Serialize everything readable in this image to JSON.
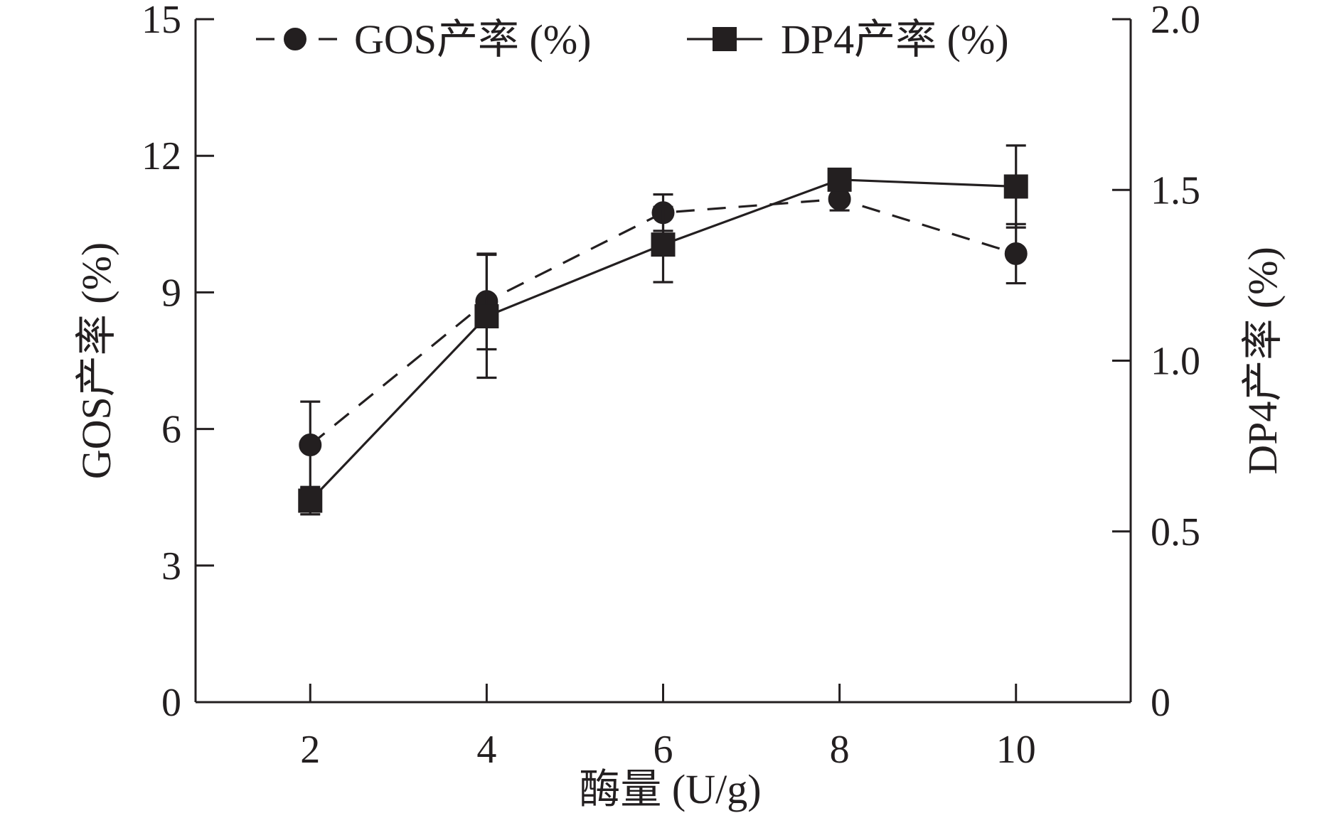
{
  "chart_data": {
    "type": "line",
    "x": [
      2,
      4,
      6,
      8,
      10
    ],
    "xlabel": "酶量 (U/g)",
    "xlim": [
      0.7,
      11.3
    ],
    "xticks": [
      2,
      4,
      6,
      8,
      10
    ],
    "ylabel": "GOS产率 (%)",
    "ylim": [
      0,
      15
    ],
    "yticks": [
      0,
      3,
      6,
      9,
      12,
      15
    ],
    "y2label": "DP4产率 (%)",
    "y2lim": [
      0,
      2.0
    ],
    "y2ticks": [
      "0",
      "0.5",
      "1.0",
      "1.5",
      "2.0"
    ],
    "grid": false,
    "legend_position": "top",
    "series": [
      {
        "name": "GOS产率 (%)",
        "axis": "left",
        "marker": "circle",
        "line_style": "dashed",
        "color": "#231f20",
        "values": [
          5.65,
          8.8,
          10.75,
          11.05,
          9.85
        ],
        "errors": [
          0.95,
          1.05,
          0.4,
          0.25,
          0.65
        ]
      },
      {
        "name": "DP4产率 (%)",
        "axis": "right",
        "marker": "square",
        "line_style": "solid",
        "color": "#231f20",
        "values": [
          0.59,
          1.13,
          1.34,
          1.53,
          1.51
        ],
        "errors": [
          0.04,
          0.18,
          0.11,
          0.02,
          0.12
        ]
      }
    ]
  }
}
